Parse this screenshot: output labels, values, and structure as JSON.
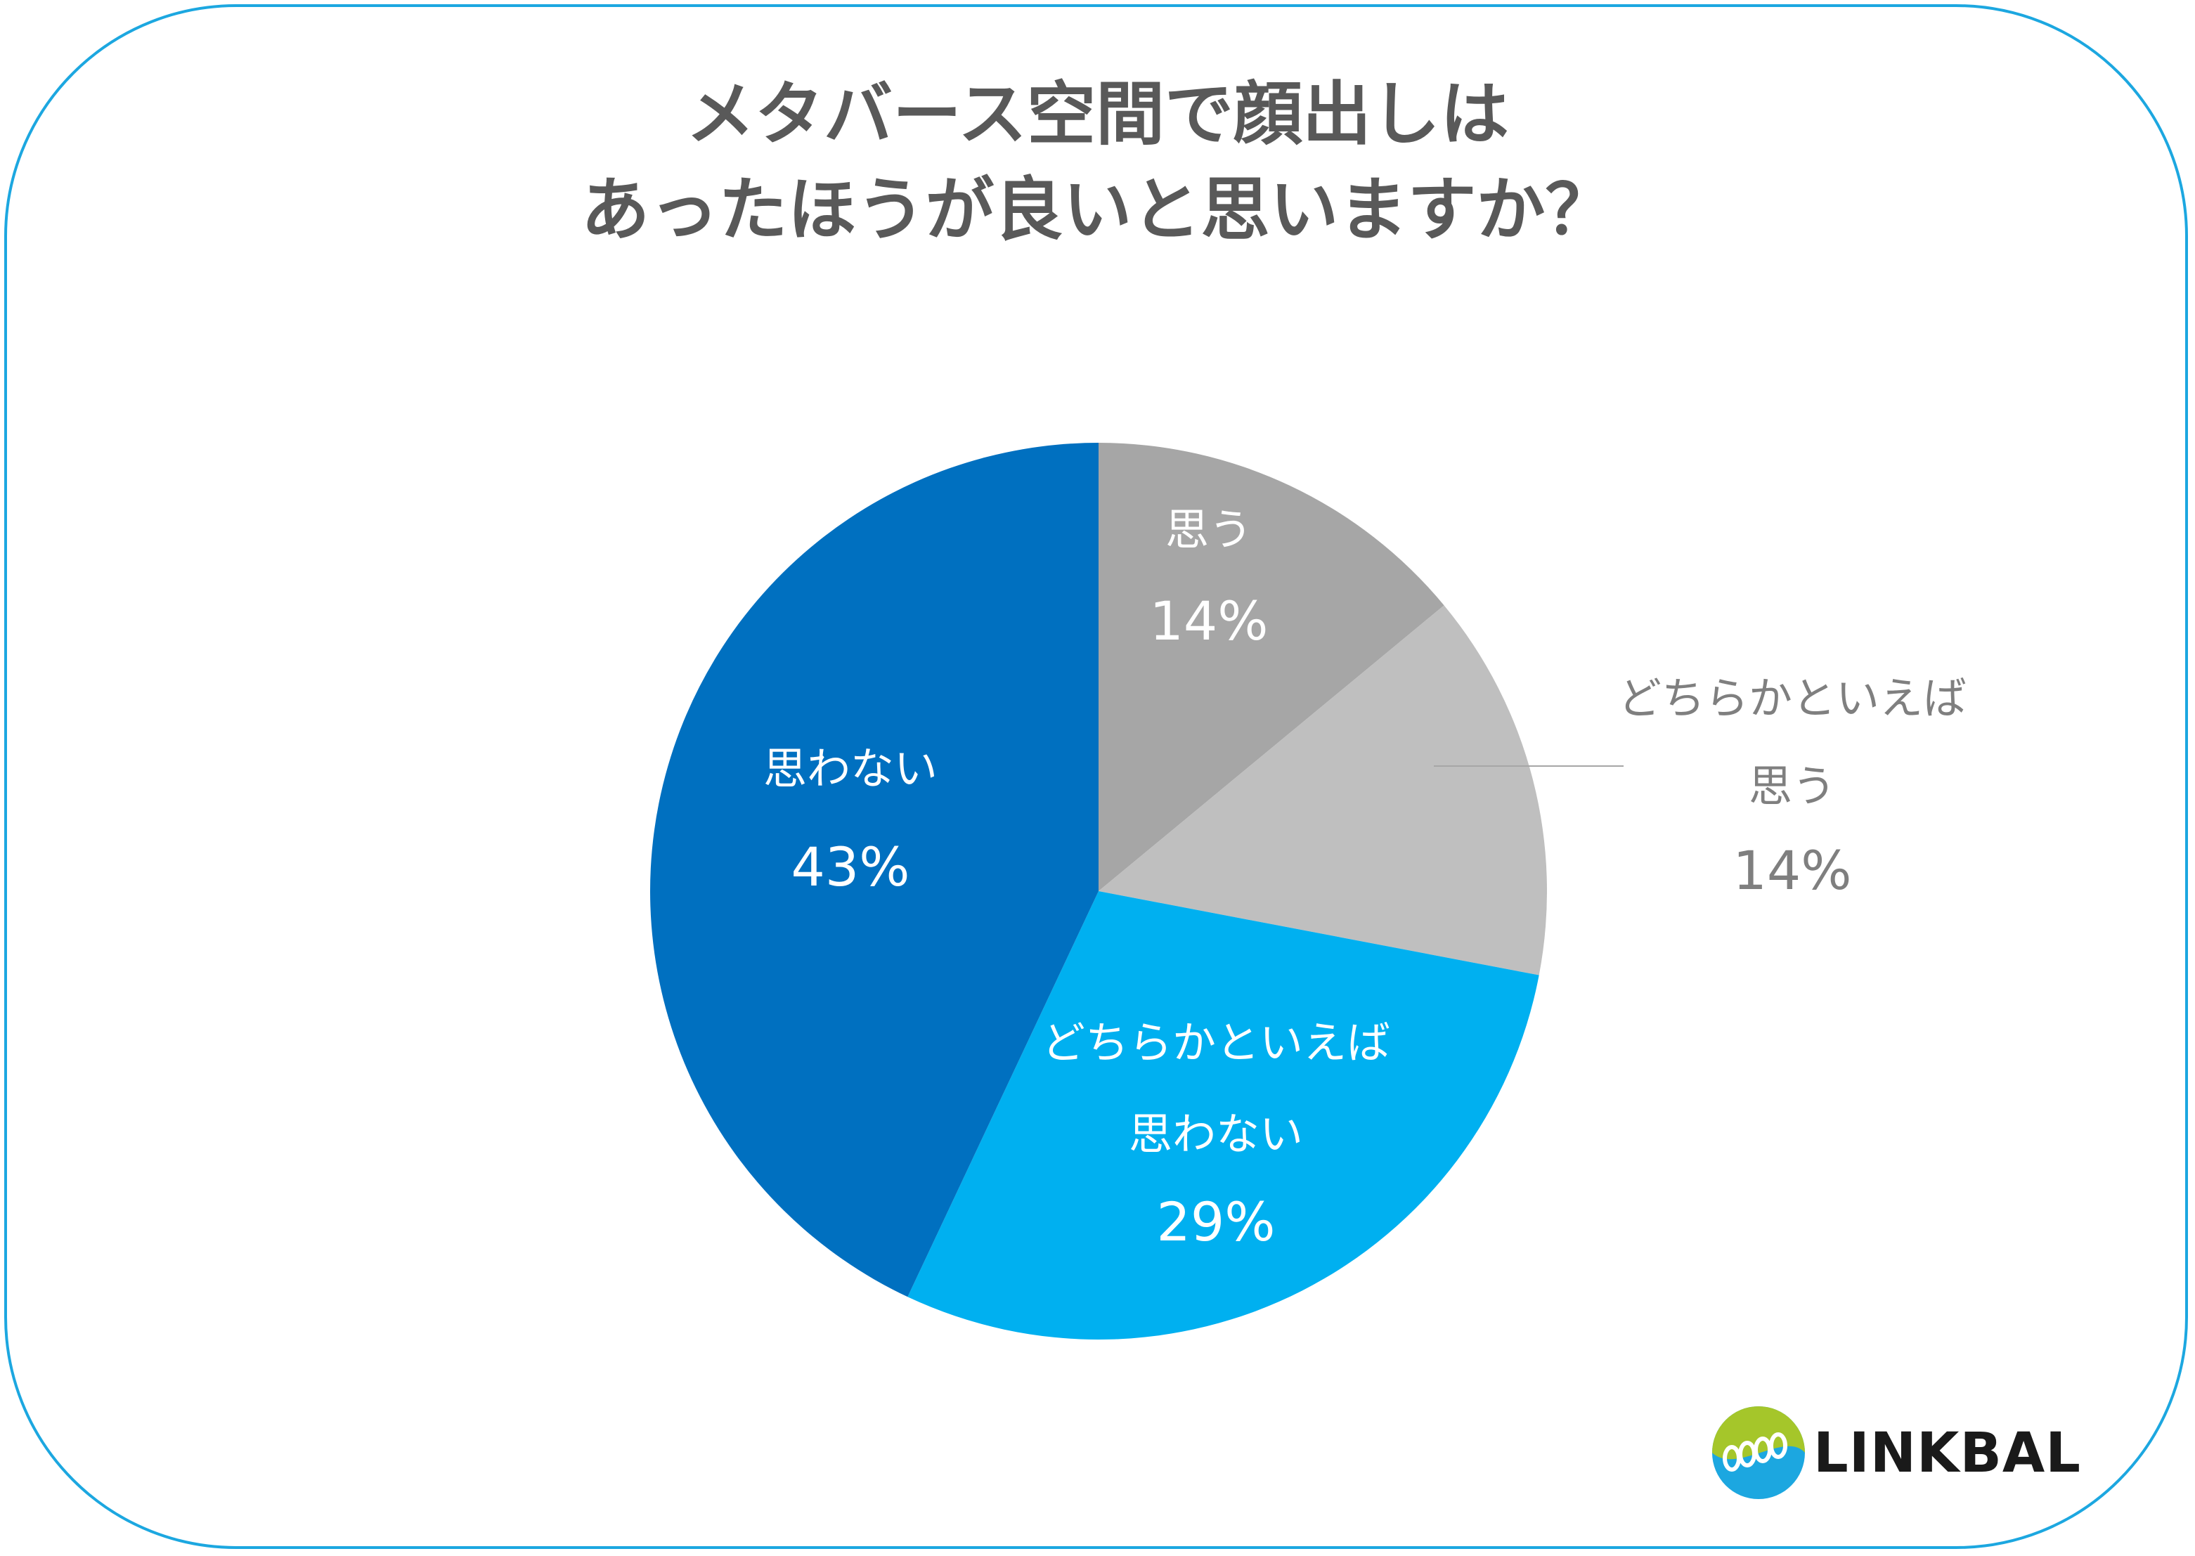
{
  "chart_data": {
    "type": "pie",
    "title_lines": [
      "メタバース空間で顔出しは",
      "あったほうが良いと思いますか？"
    ],
    "slices": [
      {
        "label_lines": [
          "思う"
        ],
        "value": 14,
        "value_label": "14%",
        "color": "#a6a6a6",
        "label_color": "#ffffff",
        "label_inside": true
      },
      {
        "label_lines": [
          "どちらかといえば",
          "思う"
        ],
        "value": 14,
        "value_label": "14%",
        "color": "#bfbfbf",
        "label_color": "#7f7f7f",
        "label_inside": false
      },
      {
        "label_lines": [
          "どちらかといえば",
          "思わない"
        ],
        "value": 29,
        "value_label": "29%",
        "color": "#00b0f0",
        "label_color": "#ffffff",
        "label_inside": true
      },
      {
        "label_lines": [
          "思わない"
        ],
        "value": 43,
        "value_label": "43%",
        "color": "#0070c0",
        "label_color": "#ffffff",
        "label_inside": true
      }
    ],
    "start": "12 o'clock",
    "direction": "clockwise"
  },
  "logo": {
    "text": "LINKBAL",
    "colors": {
      "green": "#a5c62a",
      "blue": "#1ca7e0"
    }
  },
  "colors": {
    "frame": "#1ca7e0",
    "title": "#595959"
  }
}
